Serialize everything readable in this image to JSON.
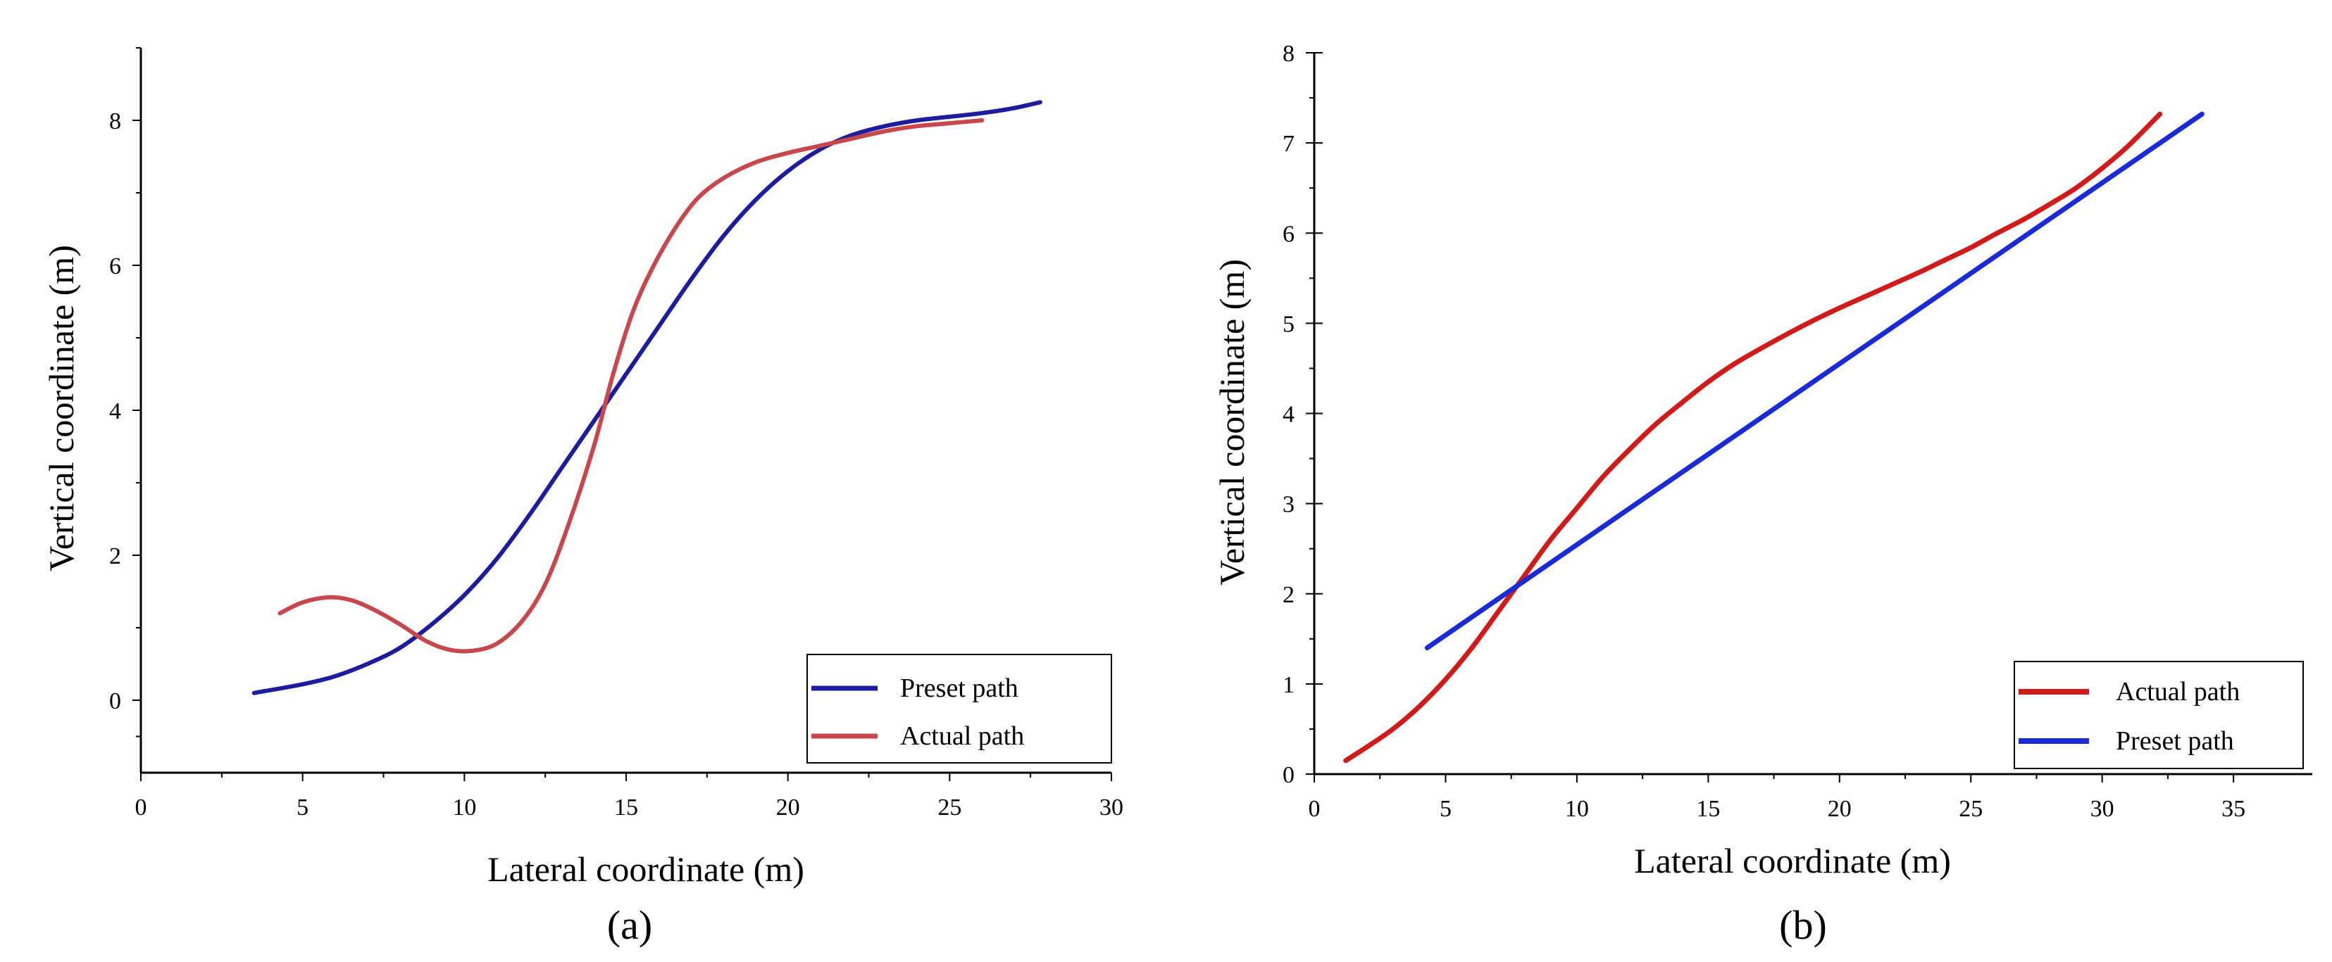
{
  "chart_data": [
    {
      "type": "line",
      "panel_label": "(a)",
      "xlabel": "Lateral coordinate (m)",
      "ylabel": "Vertical coordinate (m)",
      "xlim": [
        0,
        30
      ],
      "ylim": [
        -1,
        9
      ],
      "xticks": [
        0,
        5,
        10,
        15,
        20,
        25,
        30
      ],
      "yticks": [
        0,
        2,
        4,
        6,
        8
      ],
      "legend_position": "bottom-right",
      "series": [
        {
          "name": "Preset path",
          "color": "#1c1c9c",
          "x": [
            3.5,
            5,
            6,
            7,
            8,
            9,
            10,
            11,
            12,
            13,
            14,
            15,
            16,
            17,
            18,
            19,
            20,
            21,
            22,
            23,
            24,
            25,
            26,
            27,
            27.8
          ],
          "y": [
            0.1,
            0.22,
            0.33,
            0.5,
            0.72,
            1.05,
            1.45,
            1.95,
            2.55,
            3.2,
            3.85,
            4.5,
            5.15,
            5.8,
            6.4,
            6.9,
            7.3,
            7.6,
            7.8,
            7.92,
            8.0,
            8.05,
            8.1,
            8.17,
            8.25
          ]
        },
        {
          "name": "Actual path",
          "color": "#c8474d",
          "x": [
            4.3,
            5,
            5.8,
            6.5,
            7.2,
            8,
            8.8,
            9.5,
            10.2,
            11,
            11.8,
            12.5,
            13.2,
            14,
            14.6,
            15.2,
            15.8,
            16.5,
            17.2,
            18,
            19,
            20,
            21,
            22,
            23,
            24,
            25,
            26
          ],
          "y": [
            1.2,
            1.35,
            1.42,
            1.38,
            1.25,
            1.05,
            0.82,
            0.7,
            0.68,
            0.78,
            1.1,
            1.6,
            2.4,
            3.5,
            4.5,
            5.35,
            5.95,
            6.5,
            6.92,
            7.2,
            7.42,
            7.55,
            7.65,
            7.75,
            7.85,
            7.92,
            7.96,
            8.0
          ]
        }
      ]
    },
    {
      "type": "line",
      "panel_label": "(b)",
      "xlabel": "Lateral coordinate (m)",
      "ylabel": "Vertical coordinate (m)",
      "xlim": [
        0,
        38
      ],
      "ylim": [
        0,
        8
      ],
      "xticks": [
        0,
        5,
        10,
        15,
        20,
        25,
        30,
        35
      ],
      "yticks": [
        0,
        1,
        2,
        3,
        4,
        5,
        6,
        7,
        8
      ],
      "legend_position": "bottom-right",
      "series": [
        {
          "name": "Actual path",
          "color": "#d11a1a",
          "x": [
            1.2,
            2,
            3,
            4,
            5,
            6,
            7,
            8,
            9,
            10,
            11,
            12,
            13,
            14,
            15,
            16,
            17,
            18,
            19,
            20,
            21,
            22,
            23,
            24,
            25,
            26,
            27,
            28,
            29,
            30,
            31,
            32.2
          ],
          "y": [
            0.15,
            0.3,
            0.5,
            0.75,
            1.05,
            1.4,
            1.8,
            2.2,
            2.6,
            2.95,
            3.3,
            3.6,
            3.88,
            4.12,
            4.35,
            4.55,
            4.72,
            4.88,
            5.03,
            5.17,
            5.3,
            5.43,
            5.56,
            5.7,
            5.84,
            6.0,
            6.15,
            6.32,
            6.5,
            6.72,
            6.97,
            7.32
          ]
        },
        {
          "name": "Preset path",
          "color": "#1a2bd6",
          "x": [
            4.3,
            33.8
          ],
          "y": [
            1.4,
            7.32
          ]
        }
      ]
    }
  ]
}
